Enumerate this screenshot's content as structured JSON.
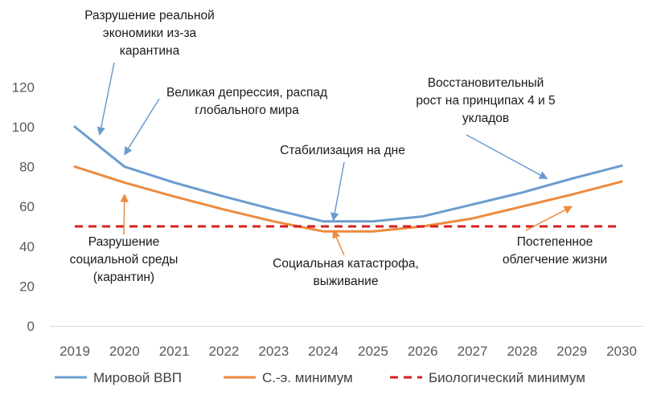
{
  "chart_data": {
    "type": "line",
    "x": [
      2019,
      2020,
      2021,
      2022,
      2023,
      2024,
      2025,
      2026,
      2027,
      2028,
      2029,
      2030
    ],
    "x_labels": [
      "2019",
      "2020",
      "2021",
      "2022",
      "2023",
      "2024",
      "2025",
      "2026",
      "2027",
      "2028",
      "2029",
      "2030"
    ],
    "ylim": [
      0,
      120
    ],
    "yticks": [
      "0",
      "20",
      "40",
      "60",
      "80",
      "100",
      "120"
    ],
    "grid": false,
    "legend_position": "bottom",
    "series": [
      {
        "name": "Мировой ВВП",
        "color": "#6b9ccf",
        "style": "solid",
        "values": [
          100,
          80,
          72,
          65,
          58.5,
          52.5,
          52.5,
          55,
          61,
          67,
          74,
          80.5
        ]
      },
      {
        "name": "С.-э. минимум",
        "color": "#ed8a3e",
        "style": "solid",
        "values": [
          80,
          72,
          65,
          58.5,
          52.5,
          47.5,
          47.5,
          50,
          54,
          60,
          66,
          72.5
        ]
      },
      {
        "name": "Биологический минимум",
        "color": "#d42020",
        "style": "dashed",
        "values": [
          50,
          50,
          50,
          50,
          50,
          50,
          50,
          50,
          50,
          50,
          50,
          50
        ]
      }
    ],
    "annotations": [
      {
        "lines": [
          "Разрушение реальной",
          "экономики из-за",
          "карантина"
        ],
        "color": "#6b9ccf",
        "target": [
          2019.5,
          96
        ]
      },
      {
        "lines": [
          "Великая депрессия, распад",
          "глобального мира"
        ],
        "color": "#6b9ccf",
        "target": [
          2020,
          86
        ]
      },
      {
        "lines": [
          "Стабилизация на дне"
        ],
        "color": "#6b9ccf",
        "target": [
          2024.2,
          53
        ]
      },
      {
        "lines": [
          "Восстановительный",
          "рост на принципах 4 и 5",
          "укладов"
        ],
        "color": "#6b9ccf",
        "target": [
          2028.5,
          74
        ]
      },
      {
        "lines": [
          "Разрушение",
          "социальной среды",
          "(карантин)"
        ],
        "color": "#ed8a3e",
        "target": [
          2020,
          66
        ]
      },
      {
        "lines": [
          "Социальная катастрофа,",
          "выживание"
        ],
        "color": "#ed8a3e",
        "target": [
          2024.2,
          48
        ]
      },
      {
        "lines": [
          "Постепенное",
          "облегчение жизни"
        ],
        "color": "#ed8a3e",
        "target": [
          2029,
          60
        ]
      }
    ]
  }
}
